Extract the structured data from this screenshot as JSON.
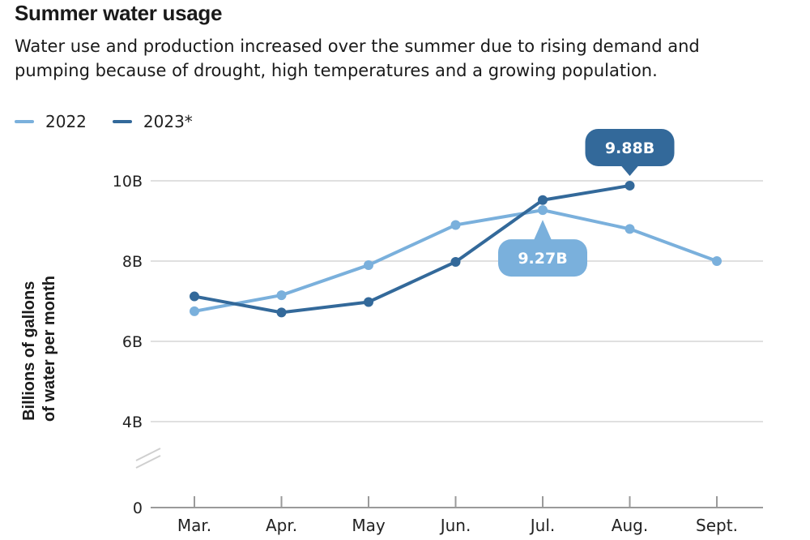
{
  "chart_data": {
    "type": "line",
    "title": "Summer water usage",
    "subtitle_lines": [
      "Water use and production increased over the summer due to rising demand and",
      "pumping because of drought, high temperatures and a growing population."
    ],
    "ylabel_lines": [
      "Billions of gallons",
      "of water per month"
    ],
    "categories": [
      "Mar.",
      "Apr.",
      "May",
      "Jun.",
      "Jul.",
      "Aug.",
      "Sept."
    ],
    "y_ticks": [
      {
        "value": 0,
        "label": "0"
      },
      {
        "value": 4,
        "label": "4B"
      },
      {
        "value": 6,
        "label": "6B"
      },
      {
        "value": 8,
        "label": "8B"
      },
      {
        "value": 10,
        "label": "10B"
      }
    ],
    "axis_break": "between 0 and 4B",
    "grid": true,
    "legend_position": "top-left",
    "series": [
      {
        "name": "2022",
        "color": "#7ab0dc",
        "values": [
          6.75,
          7.15,
          7.9,
          8.9,
          9.27,
          8.8,
          8.0
        ]
      },
      {
        "name": "2023*",
        "color": "#33699a",
        "values": [
          7.12,
          6.72,
          6.98,
          7.98,
          9.52,
          9.88,
          null
        ]
      }
    ],
    "callouts": [
      {
        "series": 0,
        "category": "Jul.",
        "text": "9.27B",
        "color": "#7ab0dc"
      },
      {
        "series": 1,
        "category": "Aug.",
        "text": "9.88B",
        "color": "#33699a"
      }
    ]
  }
}
